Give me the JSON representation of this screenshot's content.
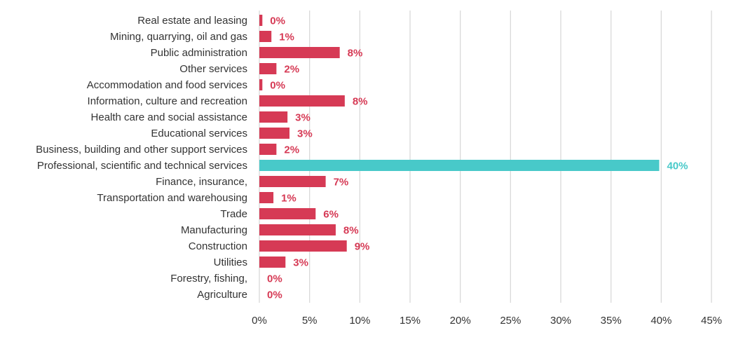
{
  "colors": {
    "bar": "#d63a55",
    "highlight": "#48c9c9",
    "grid": "#d9d9d9",
    "text": "#333333"
  },
  "chart_data": {
    "type": "bar",
    "orientation": "horizontal",
    "title": "",
    "xlabel": "",
    "ylabel": "",
    "xlim": [
      0,
      45
    ],
    "grid": true,
    "highlight_category": "Professional, scientific and technical services",
    "xticks": [
      0,
      5,
      10,
      15,
      20,
      25,
      30,
      35,
      40,
      45
    ],
    "xtick_labels": [
      "0%",
      "5%",
      "10%",
      "15%",
      "20%",
      "25%",
      "30%",
      "35%",
      "40%",
      "45%"
    ],
    "categories": [
      "Real estate and leasing",
      "Mining, quarrying, oil and gas",
      "Public administration",
      "Other services",
      "Accommodation and food services",
      "Information, culture and recreation",
      "Health care and social assistance",
      "Educational services",
      "Business, building and other support services",
      "Professional, scientific and technical services",
      "Finance, insurance, ",
      "Transportation and warehousing",
      "Trade",
      "Manufacturing",
      "Construction",
      "Utilities",
      "Forestry, fishing, ",
      "Agriculture"
    ],
    "values": [
      0.3,
      1.2,
      8.0,
      1.7,
      0.3,
      8.5,
      2.8,
      3.0,
      1.7,
      39.8,
      6.6,
      1.4,
      5.6,
      7.6,
      8.7,
      2.6,
      0.0,
      0.0
    ],
    "value_labels": [
      "0%",
      "1%",
      "8%",
      "2%",
      "0%",
      "8%",
      "3%",
      "3%",
      "2%",
      "40%",
      "7%",
      "1%",
      "6%",
      "8%",
      "9%",
      "3%",
      "0%",
      "0%"
    ]
  }
}
